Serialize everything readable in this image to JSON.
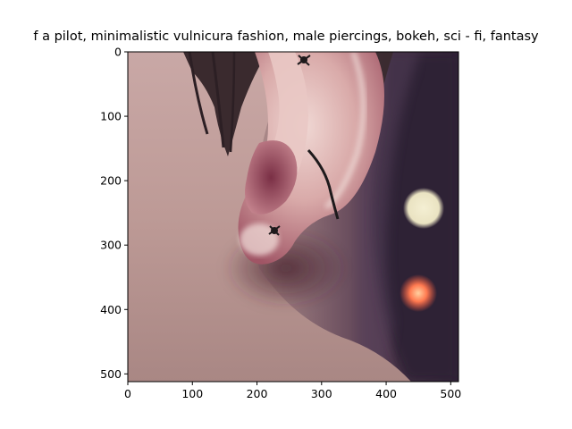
{
  "figure": {
    "title": "f a pilot,  minimalistic vulnicura fashion, male piercings, bokeh, sci - fi, fantasy",
    "image_subject": "close-up photo of a human ear with piercings against a dark bokeh background"
  },
  "axes": {
    "x_ticks": [
      "0",
      "100",
      "200",
      "300",
      "400",
      "500"
    ],
    "y_ticks": [
      "0",
      "100",
      "200",
      "300",
      "400",
      "500"
    ],
    "x_tick_values": [
      0,
      100,
      200,
      300,
      400,
      500
    ],
    "y_tick_values": [
      0,
      100,
      200,
      300,
      400,
      500
    ],
    "xlim": [
      0,
      512
    ],
    "ylim": [
      512,
      0
    ]
  },
  "colors": {
    "skin_light": "#e6c7c2",
    "skin_mid": "#c89a9c",
    "skin_shadow": "#7a3a4a",
    "hair": "#3a2a2e",
    "background_dark": "#2e2035",
    "bokeh_cream": "#f2ecd0",
    "bokeh_orange": "#ff7a50"
  }
}
